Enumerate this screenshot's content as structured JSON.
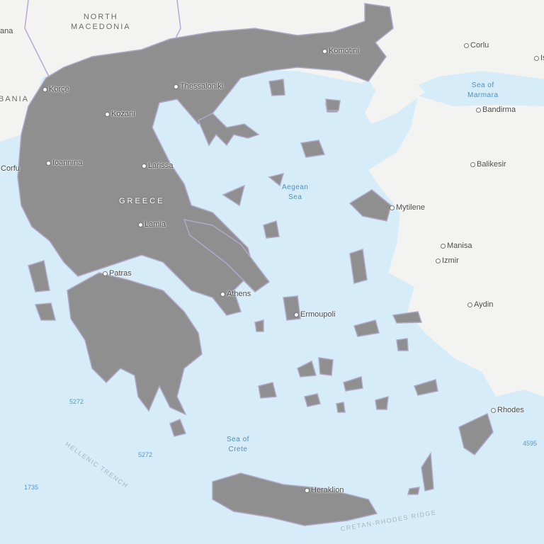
{
  "colors": {
    "sea": "#d6ecf8",
    "land": "#f4f4f2",
    "greece": "#8f8f8f",
    "fault_red": "#ff1a1a",
    "fault_green": "#66ff33",
    "fault_purple": "#cc33ff"
  },
  "labels": {
    "countries": {
      "north_macedonia": "NORTH\nMACEDONIA",
      "albania": "BANIA",
      "greece": "GREECE"
    },
    "seas": {
      "marmara": "Sea of\nMarmara",
      "aegean": "Aegean\nSea",
      "crete": "Sea of\nCrete"
    },
    "cities": {
      "tirana": "ana",
      "korce": "Korçë",
      "kozani": "Kozani",
      "thessaloniki": "Thessaloniki",
      "komotini": "Komotini",
      "corlu": "Corlu",
      "istanbul": "Is",
      "bandirma": "Bandirma",
      "balikesir": "Balikesir",
      "corfu": "Corfu",
      "ioannina": "Ioannina",
      "larissa": "Larissa",
      "lamia": "Lamia",
      "mytilene": "Mytilene",
      "manisa": "Manisa",
      "izmir": "Izmir",
      "aydin": "Aydin",
      "patras": "Patras",
      "athens": "Athens",
      "ermoupoli": "Ermoupoli",
      "rhodes": "Rhodes",
      "heraklion": "Heraklion"
    },
    "depths": [
      "5272",
      "5272",
      "1735",
      "4595"
    ],
    "features": {
      "hellenic_trench": "HELLENIC TRENCH",
      "cretan_rhodes_ridge": "CRETAN-RHODES RIDGE"
    }
  }
}
